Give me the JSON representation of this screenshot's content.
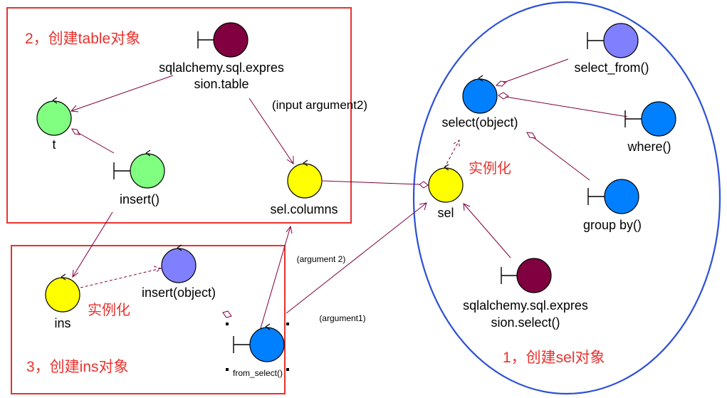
{
  "groups": {
    "table": {
      "title": "2，创建table对象"
    },
    "ins": {
      "title": "3，创建ins对象"
    },
    "sel": {
      "title": "1，创建sel对象"
    }
  },
  "nodes": {
    "table_expr": {
      "line1": "sqlalchemy.sql.expres",
      "line2": "sion.table"
    },
    "t": {
      "label": "t"
    },
    "insert": {
      "label": "insert()"
    },
    "sel_columns": {
      "label": "sel.columns"
    },
    "ins": {
      "label": "ins"
    },
    "insert_object": {
      "label": "insert(object)"
    },
    "from_select": {
      "label": "from_select()"
    },
    "select_from": {
      "label": "select_from()"
    },
    "select_object": {
      "label": "select(object)"
    },
    "where": {
      "label": "where()"
    },
    "sel": {
      "label": "sel"
    },
    "group_by": {
      "label": "group by()"
    },
    "select_expr": {
      "line1": "sqlalchemy.sql.expres",
      "line2": "sion.select()"
    }
  },
  "edge_labels": {
    "input_arg2": "(input argument2)",
    "arg2": "(argument 2)",
    "arg1": "(argument1)",
    "inst_sel": "实例化",
    "inst_ins": "实例化"
  },
  "colors": {
    "green": "#80ff80",
    "yellow": "#ffff00",
    "blue": "#0080ff",
    "lavender": "#8080ff",
    "maroon": "#800040",
    "box_border": "#e8322e",
    "ellipse_border": "#2c4fd6",
    "edge": "#800040"
  },
  "icons": {
    "green": "control-icon",
    "yellow": "entity-icon",
    "blue": "control-icon",
    "lavender": "control-icon",
    "maroon": "boundary-icon"
  }
}
